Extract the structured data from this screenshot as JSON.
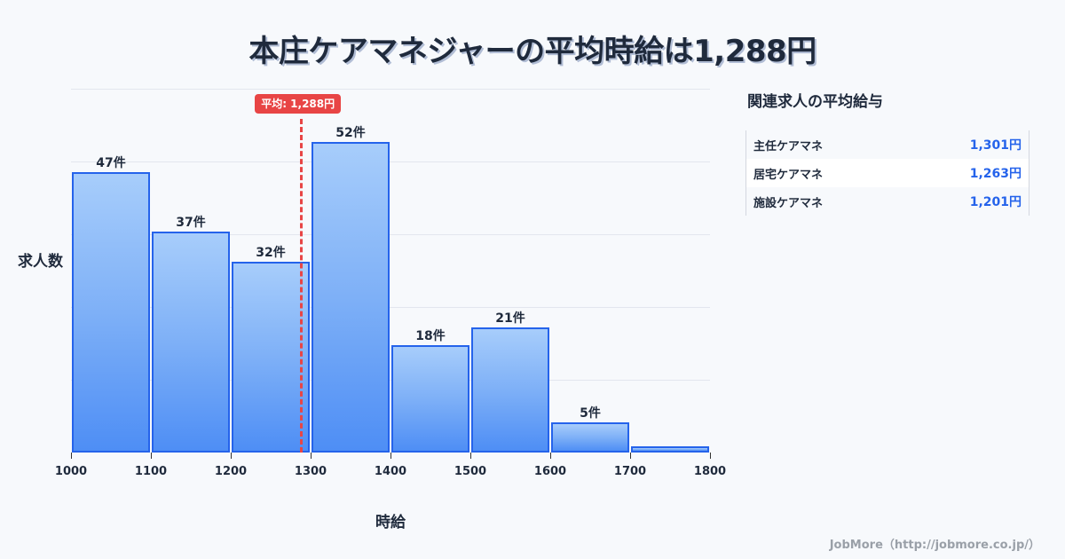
{
  "title": "本庄ケアマネジャーの平均時給は1,288円",
  "chart_data": {
    "type": "bar",
    "title": "本庄ケアマネジャーの平均時給は1,288円",
    "xlabel": "時給",
    "ylabel": "求人数",
    "bins": [
      1000,
      1100,
      1200,
      1300,
      1400,
      1500,
      1600,
      1700,
      1800
    ],
    "categories": [
      "1000-1100",
      "1100-1200",
      "1200-1300",
      "1300-1400",
      "1400-1500",
      "1500-1600",
      "1600-1700",
      "1700-1800"
    ],
    "values": [
      47,
      37,
      32,
      52,
      18,
      21,
      5,
      1
    ],
    "value_labels": [
      "47件",
      "37件",
      "32件",
      "52件",
      "18件",
      "21件",
      "5件",
      ""
    ],
    "x_tick_labels": [
      "1000",
      "1100",
      "1200",
      "1300",
      "1400",
      "1500",
      "1600",
      "1700",
      "1800"
    ],
    "xlim": [
      1000,
      1800
    ],
    "ylim": [
      0,
      61
    ],
    "grid": true,
    "legend": "none",
    "average": {
      "value": 1288,
      "label": "平均: 1,288円",
      "color": "#e84545"
    },
    "bar_color": "#4e8ef5",
    "bar_edge_color": "#2563eb"
  },
  "side_panel": {
    "title": "関連求人の平均給与",
    "rows": [
      {
        "name": "主任ケアマネ",
        "value": "1,301円"
      },
      {
        "name": "居宅ケアマネ",
        "value": "1,263円"
      },
      {
        "name": "施設ケアマネ",
        "value": "1,201円"
      }
    ]
  },
  "footer": "JobMore（http://jobmore.co.jp/）"
}
